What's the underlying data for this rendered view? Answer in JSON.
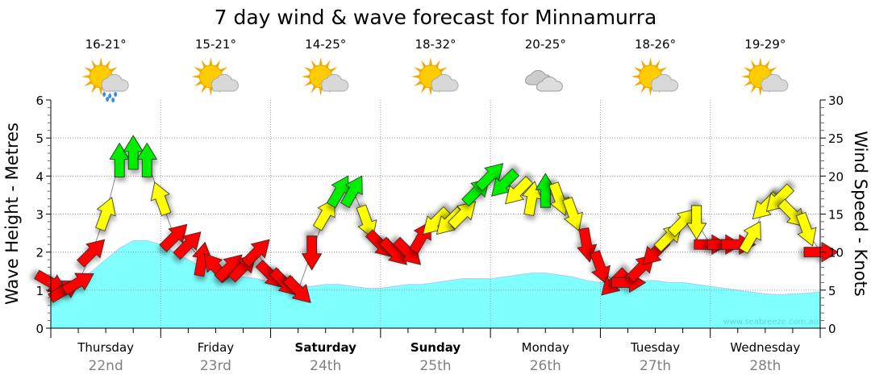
{
  "chart_data": {
    "type": "line",
    "title": "7 day wind & wave forecast for Minnamurra",
    "ylabel": "Wave Height - Metres",
    "y2label": "Wind Speed - Knots",
    "ylim": [
      0,
      6
    ],
    "y2lim": [
      0,
      30
    ],
    "yticks": [
      "0",
      "1",
      "2",
      "3",
      "4",
      "5",
      "6"
    ],
    "y2ticks": [
      "0",
      "5",
      "10",
      "15",
      "20",
      "25",
      "30"
    ],
    "watermark": "www.seabreeze.com.au",
    "days": [
      {
        "name": "Thursday",
        "date": "22nd",
        "temp": "16-21°",
        "icon": "sun-cloud-rain",
        "bold": false
      },
      {
        "name": "Friday",
        "date": "23rd",
        "temp": "15-21°",
        "icon": "sun-cloud",
        "bold": false
      },
      {
        "name": "Saturday",
        "date": "24th",
        "temp": "14-25°",
        "icon": "sun-cloud",
        "bold": true
      },
      {
        "name": "Sunday",
        "date": "25th",
        "temp": "18-32°",
        "icon": "sun-cloud",
        "bold": true
      },
      {
        "name": "Monday",
        "date": "26th",
        "temp": "20-25°",
        "icon": "cloud",
        "bold": false
      },
      {
        "name": "Tuesday",
        "date": "27th",
        "temp": "18-26°",
        "icon": "sun-cloud",
        "bold": false
      },
      {
        "name": "Wednesday",
        "date": "28th",
        "temp": "19-29°",
        "icon": "sun-cloud",
        "bold": false
      }
    ],
    "wave_height_m": [
      1.35,
      1.25,
      1.25,
      1.5,
      1.8,
      2.1,
      2.3,
      2.3,
      2.2,
      2.0,
      1.8,
      1.6,
      1.5,
      1.4,
      1.35,
      1.3,
      1.2,
      1.15,
      1.1,
      1.1,
      1.15,
      1.15,
      1.1,
      1.05,
      1.05,
      1.1,
      1.15,
      1.15,
      1.2,
      1.25,
      1.3,
      1.3,
      1.3,
      1.35,
      1.4,
      1.45,
      1.45,
      1.4,
      1.35,
      1.25,
      1.2,
      1.2,
      1.2,
      1.25,
      1.25,
      1.2,
      1.2,
      1.15,
      1.1,
      1.05,
      1.0,
      0.95,
      0.9,
      0.88,
      0.9,
      0.92,
      0.95
    ],
    "wind_knots": [
      6,
      5,
      6,
      10,
      15,
      22,
      23,
      22,
      17,
      12,
      11,
      9,
      8,
      8,
      8,
      10,
      7,
      6,
      5,
      10,
      15,
      18,
      18,
      14,
      11,
      10,
      10,
      12,
      14,
      14,
      15,
      18,
      20,
      19,
      18,
      17,
      18,
      17,
      15,
      11,
      8,
      6,
      6,
      8,
      10,
      12,
      14,
      14,
      11,
      11,
      11,
      12,
      16,
      17,
      15,
      13,
      10
    ],
    "wind_dir_deg": [
      120,
      60,
      60,
      45,
      20,
      0,
      0,
      0,
      340,
      45,
      45,
      10,
      320,
      45,
      45,
      45,
      135,
      135,
      135,
      180,
      30,
      30,
      30,
      160,
      135,
      135,
      135,
      30,
      225,
      225,
      45,
      45,
      45,
      225,
      225,
      10,
      0,
      160,
      160,
      170,
      160,
      225,
      90,
      45,
      225,
      45,
      45,
      180,
      90,
      90,
      90,
      30,
      225,
      225,
      135,
      160,
      90
    ],
    "wind_color": [
      "red",
      "red",
      "red",
      "red",
      "yellow",
      "green",
      "green",
      "green",
      "yellow",
      "red",
      "red",
      "red",
      "red",
      "red",
      "red",
      "red",
      "red",
      "red",
      "red",
      "red",
      "yellow",
      "green",
      "green",
      "yellow",
      "red",
      "red",
      "red",
      "red",
      "yellow",
      "yellow",
      "yellow",
      "green",
      "green",
      "green",
      "yellow",
      "yellow",
      "green",
      "yellow",
      "yellow",
      "red",
      "red",
      "red",
      "red",
      "red",
      "red",
      "yellow",
      "yellow",
      "yellow",
      "red",
      "red",
      "red",
      "yellow",
      "yellow",
      "yellow",
      "yellow",
      "yellow",
      "red"
    ],
    "colors": {
      "red": "#ff0000",
      "yellow": "#ffff00",
      "green": "#00ee00",
      "wave": "#80ffff"
    }
  }
}
